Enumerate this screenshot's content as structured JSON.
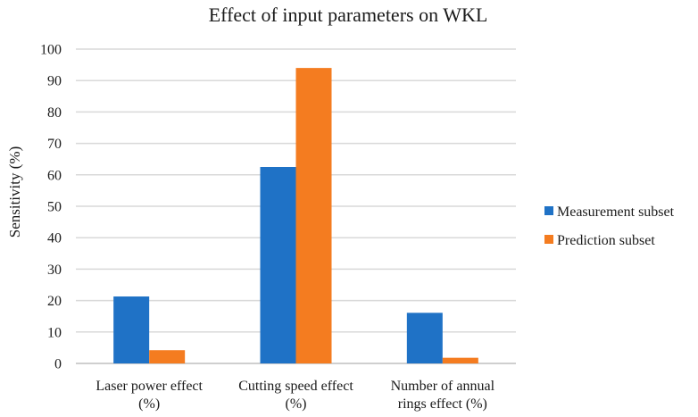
{
  "chart_data": {
    "type": "bar",
    "title": "Effect of input parameters on WKL",
    "xlabel": "",
    "ylabel": "Sensitivity (%)",
    "ylim": [
      0,
      100
    ],
    "yticks": [
      0,
      10,
      20,
      30,
      40,
      50,
      60,
      70,
      80,
      90,
      100
    ],
    "grid": true,
    "legend_position": "right",
    "categories": [
      [
        "Laser power effect",
        "(%)"
      ],
      [
        "Cutting speed effect",
        "(%)"
      ],
      [
        "Number of annual",
        "rings effect (%)"
      ]
    ],
    "series": [
      {
        "name": "Measurement subset",
        "color": "#1f72c6",
        "values": [
          21.3,
          62.5,
          16.1
        ]
      },
      {
        "name": "Prediction subset",
        "color": "#f47c20",
        "values": [
          4.2,
          94.0,
          1.8
        ]
      }
    ]
  }
}
